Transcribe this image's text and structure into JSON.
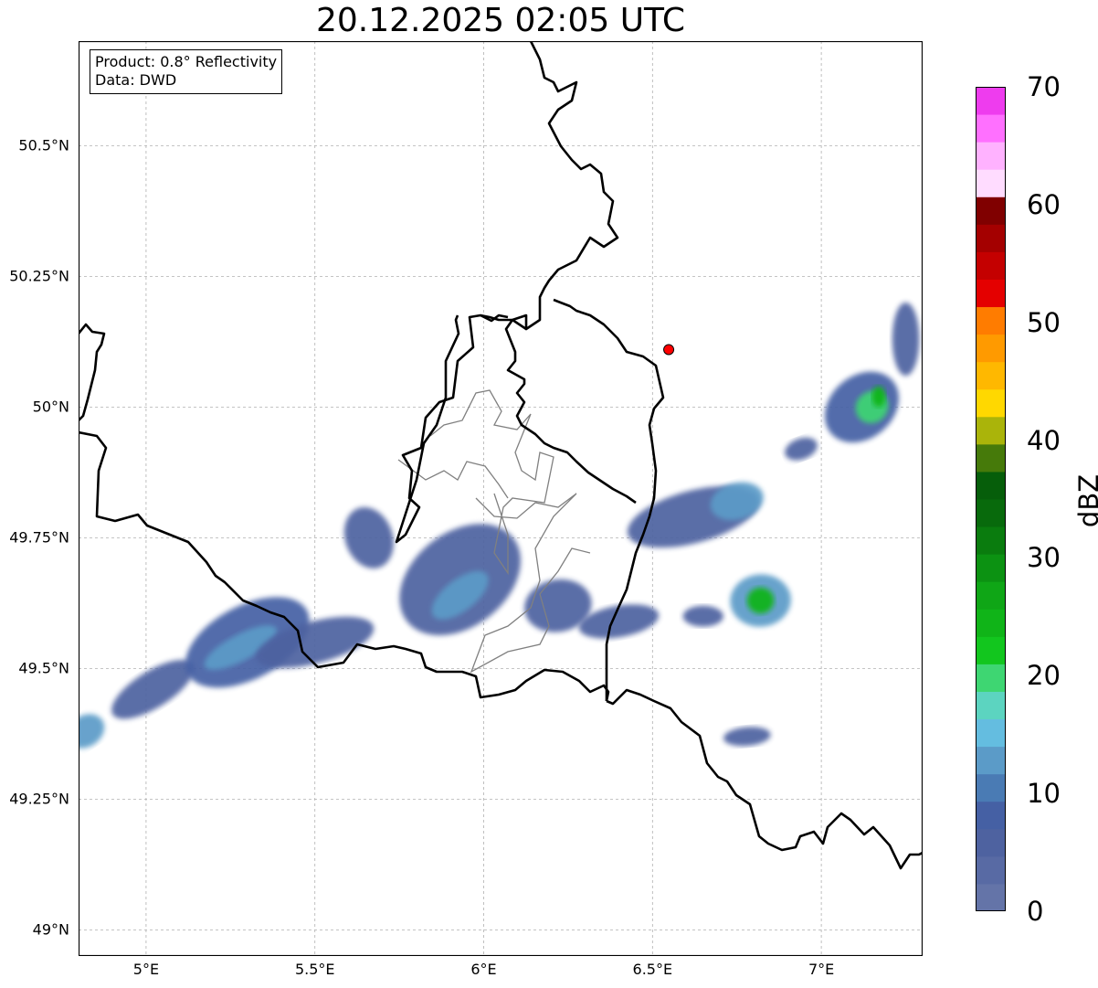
{
  "title": "20.12.2025 02:05 UTC",
  "info": {
    "product": "Product: 0.8° Reflectivity",
    "data": "Data: DWD"
  },
  "map": {
    "extent": {
      "lon_min": 4.8,
      "lon_max": 7.3,
      "lat_min": 48.95,
      "lat_max": 50.7
    },
    "lat_ticks": [
      {
        "value": 49.0,
        "label": "49°N"
      },
      {
        "value": 49.25,
        "label": "49.25°N"
      },
      {
        "value": 49.5,
        "label": "49.5°N"
      },
      {
        "value": 49.75,
        "label": "49.75°N"
      },
      {
        "value": 50.0,
        "label": "50°N"
      },
      {
        "value": 50.25,
        "label": "50.25°N"
      },
      {
        "value": 50.5,
        "label": "50.5°N"
      }
    ],
    "lon_ticks": [
      {
        "value": 5.0,
        "label": "5°E"
      },
      {
        "value": 5.5,
        "label": "5.5°E"
      },
      {
        "value": 6.0,
        "label": "6°E"
      },
      {
        "value": 6.5,
        "label": "6.5°E"
      },
      {
        "value": 7.0,
        "label": "7°E"
      }
    ],
    "radar_site": {
      "lon": 6.548,
      "lat": 50.11,
      "color": "#ff0000"
    },
    "colors": {
      "border": "#000000",
      "district": "#808080",
      "grid": "#b0b0b0"
    }
  },
  "colorbar": {
    "label": "dBZ",
    "min": 0,
    "max": 70,
    "step": 2.5,
    "ticks": [
      "0",
      "10",
      "20",
      "30",
      "40",
      "50",
      "60",
      "70"
    ],
    "colors": [
      "#6474a8",
      "#586aa4",
      "#4e62a0",
      "#4560a4",
      "#4a7bb4",
      "#5b9bc8",
      "#64bde0",
      "#5cd4c0",
      "#3ed672",
      "#12c61e",
      "#10b418",
      "#0fa616",
      "#0c9212",
      "#0a7c0e",
      "#086a0c",
      "#065e0a",
      "#467a0a",
      "#aab40a",
      "#ffd800",
      "#ffb800",
      "#ff9a00",
      "#ff7c00",
      "#e40000",
      "#c40000",
      "#a40000",
      "#800000",
      "#ffdcff",
      "#ffb2ff",
      "#ff70ff",
      "#ee3cee"
    ]
  },
  "echoes": [
    {
      "lon": 4.82,
      "lat": 49.38,
      "rx": 0.06,
      "ry": 0.03,
      "rot": -32,
      "dbz": 13
    },
    {
      "lon": 5.02,
      "lat": 49.46,
      "rx": 0.14,
      "ry": 0.035,
      "rot": -32,
      "dbz": 7
    },
    {
      "lon": 5.3,
      "lat": 49.55,
      "rx": 0.2,
      "ry": 0.07,
      "rot": -28,
      "dbz": 8
    },
    {
      "lon": 5.28,
      "lat": 49.54,
      "rx": 0.12,
      "ry": 0.025,
      "rot": -28,
      "dbz": 14
    },
    {
      "lon": 5.5,
      "lat": 49.55,
      "rx": 0.18,
      "ry": 0.04,
      "rot": -15,
      "dbz": 6
    },
    {
      "lon": 5.93,
      "lat": 49.67,
      "rx": 0.2,
      "ry": 0.09,
      "rot": -38,
      "dbz": 7
    },
    {
      "lon": 5.93,
      "lat": 49.64,
      "rx": 0.1,
      "ry": 0.03,
      "rot": -38,
      "dbz": 14
    },
    {
      "lon": 5.66,
      "lat": 49.75,
      "rx": 0.07,
      "ry": 0.06,
      "rot": -20,
      "dbz": 5
    },
    {
      "lon": 6.22,
      "lat": 49.62,
      "rx": 0.1,
      "ry": 0.05,
      "rot": -10,
      "dbz": 6
    },
    {
      "lon": 6.4,
      "lat": 49.59,
      "rx": 0.12,
      "ry": 0.03,
      "rot": -10,
      "dbz": 7
    },
    {
      "lon": 6.62,
      "lat": 49.79,
      "rx": 0.2,
      "ry": 0.05,
      "rot": -15,
      "dbz": 7
    },
    {
      "lon": 6.75,
      "lat": 49.82,
      "rx": 0.08,
      "ry": 0.035,
      "rot": -15,
      "dbz": 13
    },
    {
      "lon": 6.82,
      "lat": 49.63,
      "rx": 0.09,
      "ry": 0.05,
      "rot": -5,
      "dbz": 13
    },
    {
      "lon": 6.82,
      "lat": 49.63,
      "rx": 0.04,
      "ry": 0.025,
      "rot": -5,
      "dbz": 25
    },
    {
      "lon": 6.65,
      "lat": 49.6,
      "rx": 0.06,
      "ry": 0.02,
      "rot": 0,
      "dbz": 7
    },
    {
      "lon": 7.12,
      "lat": 50.0,
      "rx": 0.12,
      "ry": 0.06,
      "rot": -40,
      "dbz": 8
    },
    {
      "lon": 7.15,
      "lat": 50.0,
      "rx": 0.05,
      "ry": 0.03,
      "rot": -40,
      "dbz": 22
    },
    {
      "lon": 7.17,
      "lat": 50.02,
      "rx": 0.02,
      "ry": 0.02,
      "rot": 0,
      "dbz": 25
    },
    {
      "lon": 6.94,
      "lat": 49.92,
      "rx": 0.05,
      "ry": 0.02,
      "rot": -20,
      "dbz": 6
    },
    {
      "lon": 6.78,
      "lat": 49.37,
      "rx": 0.07,
      "ry": 0.018,
      "rot": -5,
      "dbz": 7
    },
    {
      "lon": 7.25,
      "lat": 50.13,
      "rx": 0.04,
      "ry": 0.07,
      "rot": 0,
      "dbz": 6
    }
  ]
}
